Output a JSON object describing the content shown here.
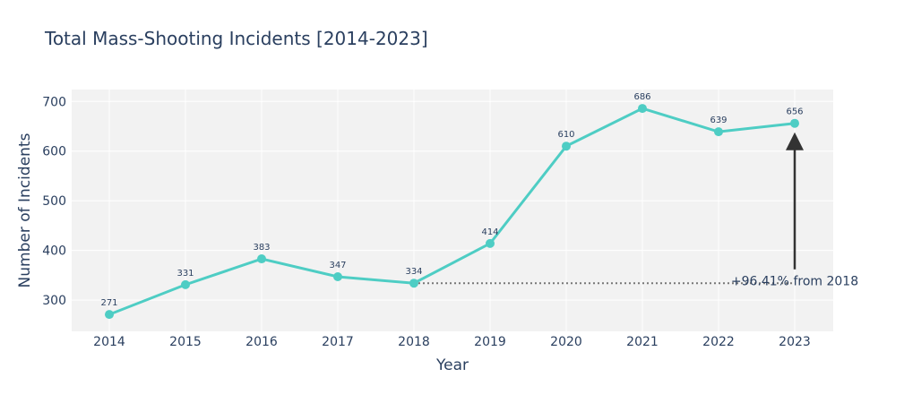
{
  "chart_data": {
    "type": "line",
    "title": "Total Mass-Shooting Incidents [2014-2023]",
    "xlabel": "Year",
    "ylabel": "Number of Incidents",
    "x": [
      "2014",
      "2015",
      "2016",
      "2017",
      "2018",
      "2019",
      "2020",
      "2021",
      "2022",
      "2023"
    ],
    "values": [
      271,
      331,
      383,
      347,
      334,
      414,
      610,
      686,
      639,
      656
    ],
    "data_labels": [
      "271",
      "331",
      "383",
      "347",
      "334",
      "414",
      "610",
      "686",
      "639",
      "656"
    ],
    "y_ticks": [
      "300",
      "400",
      "500",
      "600",
      "700"
    ],
    "ylim": [
      237,
      724
    ],
    "grid": true,
    "series_color": "#4ecdc4",
    "reference_line": {
      "from_year": "2018",
      "to_year": "2023",
      "value": 334
    },
    "annotation": {
      "text": "+96.41% from 2018",
      "arrow_from_value": 362,
      "arrow_to_value": 656,
      "at_year": "2023"
    }
  }
}
